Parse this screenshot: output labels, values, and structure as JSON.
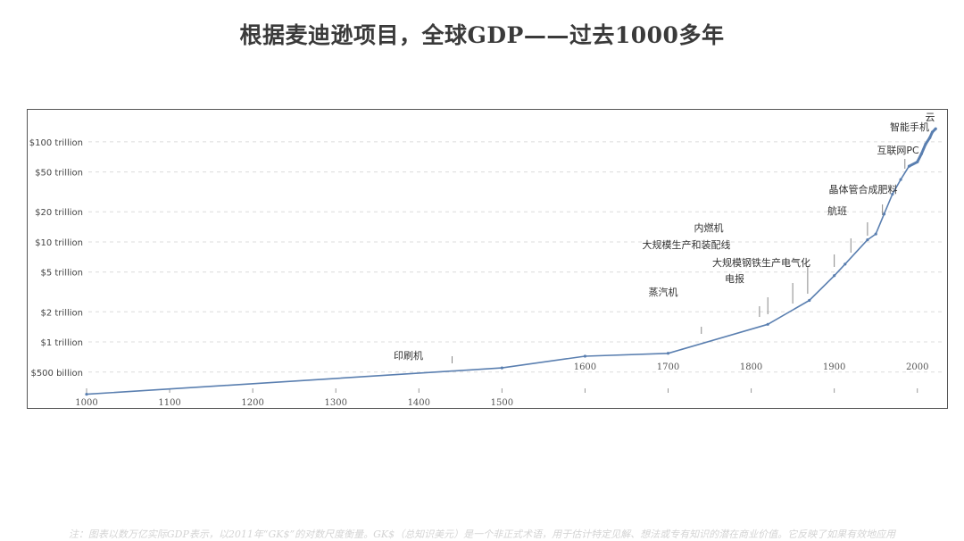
{
  "title": "根据麦迪逊项目，全球GDP——过去1000多年",
  "footnote": "注：图表以数万亿实际GDP表示，以2011年“GK$”的对数尺度衡量。GK$（总知识美元）是一个非正式术语，用于估计特定见解、想法或专有知识的潜在商业价值。它反映了如果有效地应用",
  "chart_data": {
    "type": "line",
    "title": "",
    "xlabel": "",
    "ylabel": "",
    "y_scale": "log",
    "x_range": [
      1000,
      2025
    ],
    "y_range_trillions": [
      0.28,
      160
    ],
    "grid": "horizontal-dashed",
    "line_color": "#5a7fb0",
    "y_ticks": [
      {
        "value": 0.5,
        "label": "$500 billion"
      },
      {
        "value": 1,
        "label": "$1 trillion"
      },
      {
        "value": 2,
        "label": "$2 trillion"
      },
      {
        "value": 5,
        "label": "$5 trillion"
      },
      {
        "value": 10,
        "label": "$10 trillion"
      },
      {
        "value": 20,
        "label": "$20 trillion"
      },
      {
        "value": 50,
        "label": "$50 trillion"
      },
      {
        "value": 100,
        "label": "$100 trillion"
      }
    ],
    "x_ticks_bottom": [
      {
        "value": 1000,
        "label": "1000"
      },
      {
        "value": 1100,
        "label": "1100"
      },
      {
        "value": 1200,
        "label": "1200"
      },
      {
        "value": 1300,
        "label": "1300"
      },
      {
        "value": 1400,
        "label": "1400"
      },
      {
        "value": 1500,
        "label": "1500"
      }
    ],
    "x_ticks_top": [
      {
        "value": 1600,
        "label": "1600"
      },
      {
        "value": 1700,
        "label": "1700"
      },
      {
        "value": 1800,
        "label": "1800"
      },
      {
        "value": 1900,
        "label": "1900"
      },
      {
        "value": 2000,
        "label": "2000"
      }
    ],
    "x_tick_marks": [
      1000,
      1100,
      1200,
      1300,
      1400,
      1500,
      1600,
      1700,
      1800,
      1900,
      2000
    ],
    "series": [
      {
        "x": [
          1000,
          1500,
          1600,
          1700,
          1820,
          1870,
          1900,
          1913,
          1940,
          1950,
          1960,
          1970,
          1980,
          1990,
          2000,
          2005,
          2010,
          2015,
          2018,
          2022
        ],
        "y": [
          0.3,
          0.55,
          0.72,
          0.77,
          1.5,
          2.6,
          4.6,
          6.0,
          10.5,
          12.0,
          19.0,
          30.0,
          42.0,
          57.0,
          63.0,
          76.0,
          95.0,
          110.0,
          125.0,
          135.0
        ]
      }
    ],
    "annotations": [
      {
        "label": "印刷机",
        "year": 1440
      },
      {
        "label": "蒸汽机",
        "year": 1740
      },
      {
        "label": "内燃机",
        "year": 1860
      },
      {
        "label": "大规模生产和装配线",
        "year": 1910
      },
      {
        "label": "大规模钢铁生产电气化",
        "year": 1870
      },
      {
        "label": "电报",
        "year": 1840
      },
      {
        "label": "航班",
        "year": 1930
      },
      {
        "label": "晶体管合成肥料",
        "year": 1960
      },
      {
        "label": "互联网PC",
        "year": 1985
      },
      {
        "label": "智能手机",
        "year": 2007
      },
      {
        "label": "云",
        "year": 2015
      }
    ]
  }
}
